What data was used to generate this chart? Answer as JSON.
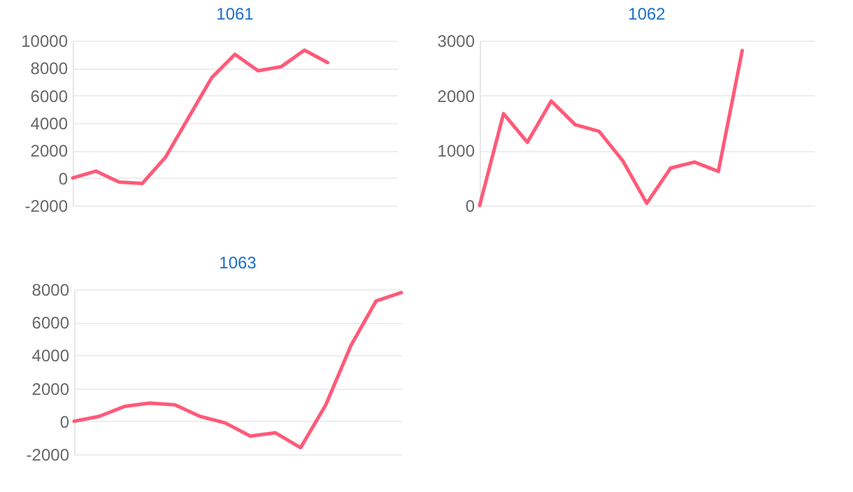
{
  "chart_data": [
    {
      "type": "line",
      "title": "1061",
      "categories": [
        null,
        null,
        null,
        null,
        null,
        null,
        null,
        null,
        null,
        null,
        null,
        null,
        null,
        null,
        null
      ],
      "series": [
        {
          "color": "#ff5a78",
          "values": [
            0,
            500,
            -300,
            -400,
            1500,
            4400,
            7300,
            9000,
            7800,
            8100,
            9300,
            8400,
            null,
            null,
            null
          ]
        }
      ],
      "ylim": [
        -2000,
        10000
      ],
      "yticks": [
        -2000,
        0,
        2000,
        4000,
        6000,
        8000,
        10000
      ],
      "grid": "y",
      "tick_labels": "y",
      "marker": "none",
      "line_style": "solid"
    },
    {
      "type": "line",
      "title": "1062",
      "categories": [
        null,
        null,
        null,
        null,
        null,
        null,
        null,
        null,
        null,
        null,
        null,
        null,
        null,
        null,
        null
      ],
      "series": [
        {
          "color": "#ff5a78",
          "values": [
            0,
            1670,
            1150,
            1900,
            1470,
            1350,
            810,
            40,
            680,
            790,
            620,
            2820,
            null,
            null,
            null
          ]
        }
      ],
      "ylim": [
        0,
        3000
      ],
      "yticks": [
        0,
        1000,
        2000,
        3000
      ],
      "grid": "y",
      "tick_labels": "y",
      "marker": "none",
      "line_style": "solid"
    },
    {
      "type": "line",
      "title": "1063",
      "categories": [
        null,
        null,
        null,
        null,
        null,
        null,
        null,
        null,
        null,
        null,
        null,
        null,
        null,
        null
      ],
      "series": [
        {
          "color": "#ff5a78",
          "values": [
            0,
            300,
            900,
            1100,
            1000,
            300,
            -100,
            -900,
            -700,
            -1600,
            1000,
            4600,
            7300,
            7800
          ]
        }
      ],
      "ylim": [
        -2000,
        8000
      ],
      "yticks": [
        -2000,
        0,
        2000,
        4000,
        6000,
        8000
      ],
      "grid": "y",
      "tick_labels": "y",
      "marker": "none",
      "line_style": "solid"
    }
  ]
}
